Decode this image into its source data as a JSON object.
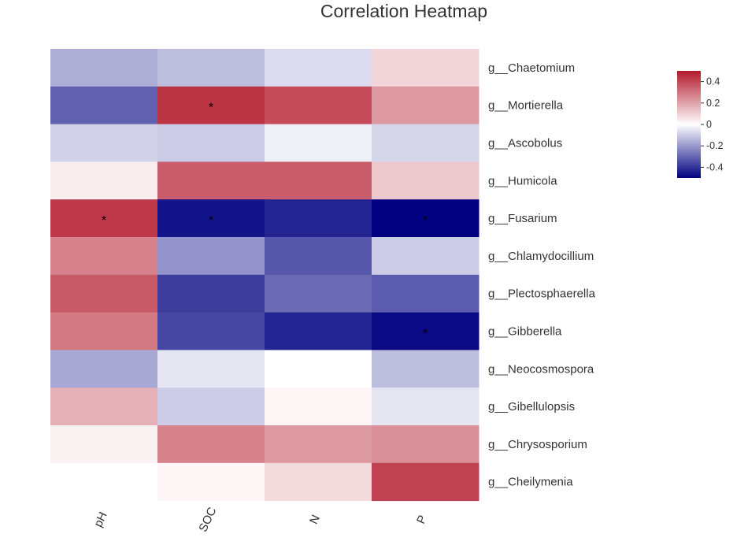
{
  "chart_data": {
    "type": "heatmap",
    "title": "Correlation Heatmap",
    "columns": [
      "pH",
      "SOC",
      "N",
      "P"
    ],
    "rows": [
      "g__Chaetomium",
      "g__Mortierella",
      "g__Ascobolus",
      "g__Humicola",
      "g__Fusarium",
      "g__Chlamydocillium",
      "g__Plectosphaerella",
      "g__Gibberella",
      "g__Neocosmospora",
      "g__Gibellulopsis",
      "g__Chrysosporium",
      "g__Cheilymenia"
    ],
    "values": [
      [
        -0.16,
        -0.13,
        -0.07,
        0.09
      ],
      [
        -0.31,
        0.44,
        0.39,
        0.22
      ],
      [
        -0.09,
        -0.1,
        -0.03,
        -0.08
      ],
      [
        0.04,
        0.35,
        0.35,
        0.12
      ],
      [
        0.43,
        -0.46,
        -0.43,
        -0.52
      ],
      [
        0.27,
        -0.21,
        -0.33,
        -0.1
      ],
      [
        0.36,
        -0.38,
        -0.29,
        -0.32
      ],
      [
        0.29,
        -0.36,
        -0.43,
        -0.48
      ],
      [
        -0.17,
        -0.05,
        0.0,
        -0.13
      ],
      [
        0.17,
        -0.1,
        0.02,
        -0.05
      ],
      [
        0.03,
        0.27,
        0.22,
        0.24
      ],
      [
        0.0,
        0.02,
        0.08,
        0.41
      ]
    ],
    "significance": [
      [
        "",
        "",
        "",
        ""
      ],
      [
        "",
        "*",
        "",
        ""
      ],
      [
        "",
        "",
        "",
        ""
      ],
      [
        "",
        "",
        "",
        ""
      ],
      [
        "*",
        "*",
        "",
        "*"
      ],
      [
        "",
        "",
        "",
        ""
      ],
      [
        "",
        "",
        "",
        ""
      ],
      [
        "",
        "",
        "",
        "*"
      ],
      [
        "",
        "",
        "",
        ""
      ],
      [
        "",
        "",
        "",
        ""
      ],
      [
        "",
        "",
        "",
        ""
      ],
      [
        "",
        "",
        "",
        ""
      ]
    ],
    "color_scale": {
      "low": "#000080",
      "mid": "#ffffff",
      "high": "#b2182b",
      "range": [
        -0.5,
        0.5
      ]
    },
    "legend": {
      "ticks": [
        0.4,
        0.2,
        0,
        -0.2,
        -0.4
      ],
      "tick_labels": [
        "0.4",
        "0.2",
        "0",
        "-0.2",
        "-0.4"
      ],
      "placement": "right"
    }
  }
}
